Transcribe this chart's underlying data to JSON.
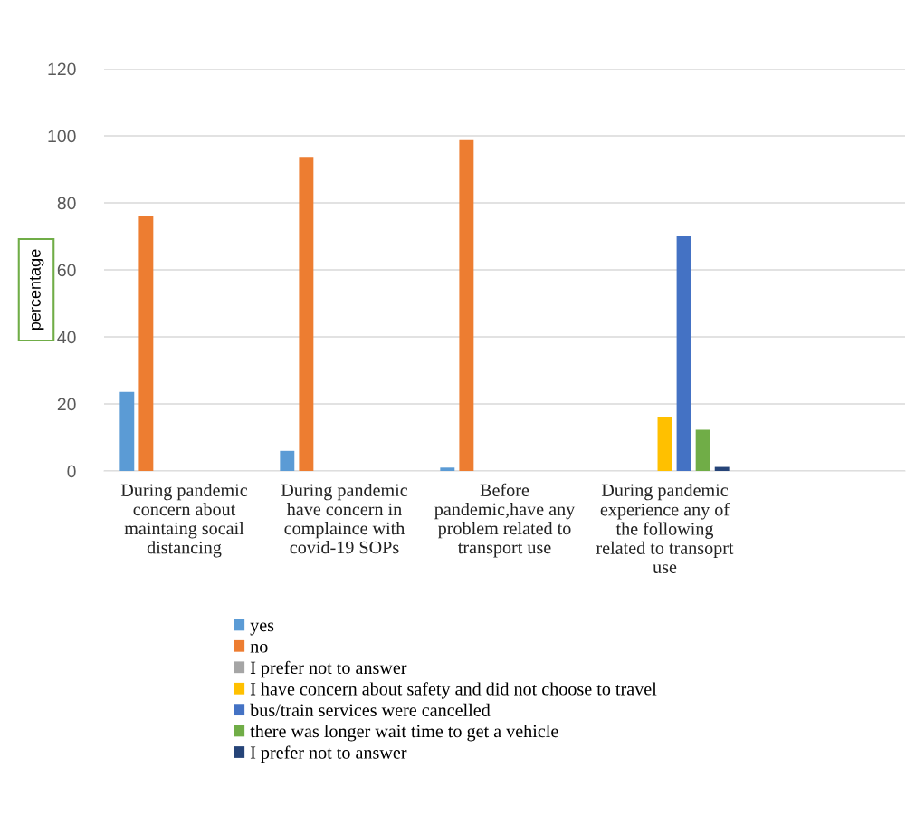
{
  "chart_data": {
    "type": "bar",
    "ylabel": "percentage",
    "categories": [
      "During pandemic\nconcern about\nmaintaing socail\ndistancing",
      "During pandemic\nhave concern in\ncomplaince with\ncovid-19 SOPs",
      "Before\npandemic,have any\nproblem related to\ntransport use",
      "During pandemic\nexperience any of\nthe following\nrelated to transoprt\nuse",
      null
    ],
    "series": [
      {
        "name": "yes",
        "color": "#5b9bd5",
        "values": [
          23.6,
          6.0,
          1.0,
          null,
          null
        ]
      },
      {
        "name": "no",
        "color": "#ed7d31",
        "values": [
          76.1,
          93.7,
          98.7,
          null,
          null
        ]
      },
      {
        "name": "I prefer not to answer",
        "color": "#a5a5a5",
        "values": [
          null,
          null,
          null,
          null,
          null
        ]
      },
      {
        "name": "I have concern about safety and did not choose to travel",
        "color": "#ffc000",
        "values": [
          null,
          null,
          null,
          16.2,
          null
        ]
      },
      {
        "name": "bus/train services were cancelled",
        "color": "#4472c4",
        "values": [
          null,
          null,
          null,
          70.0,
          null
        ]
      },
      {
        "name": "there was longer wait time to get a vehicle",
        "color": "#70ad47",
        "values": [
          null,
          null,
          null,
          12.3,
          null
        ]
      },
      {
        "name": "I prefer not to answer",
        "color": "#264478",
        "values": [
          null,
          null,
          null,
          1.2,
          null
        ]
      }
    ],
    "ylim": [
      0,
      120
    ],
    "yticks": [
      0,
      20,
      40,
      60,
      80,
      100,
      120
    ],
    "grid": "y",
    "legend": "bottom"
  }
}
